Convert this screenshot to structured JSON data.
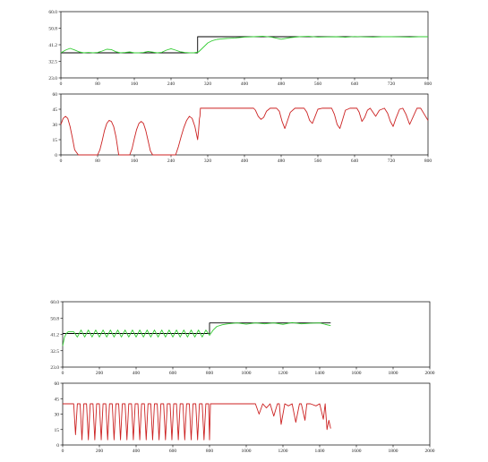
{
  "chart_data": [
    {
      "type": "line",
      "title": "",
      "xlim": [
        0,
        800
      ],
      "ylim": [
        23.0,
        60.0
      ],
      "x_ticks": [
        "0",
        "80",
        "160",
        "240",
        "320",
        "400",
        "480",
        "560",
        "640",
        "720",
        "800"
      ],
      "y_ticks": [
        "23.0",
        "32.5",
        "41.2",
        "50.8",
        "60.0"
      ],
      "colors": {
        "setpoint": "#000000",
        "response": "#33cc33"
      },
      "series": [
        {
          "color": "#000000",
          "x": [
            0,
            298,
            298,
            800
          ],
          "y": [
            37,
            37,
            46,
            46
          ]
        },
        {
          "color": "#33cc33",
          "x": [
            0,
            10,
            20,
            30,
            40,
            50,
            60,
            70,
            80,
            90,
            100,
            110,
            120,
            130,
            140,
            150,
            160,
            170,
            180,
            190,
            200,
            210,
            220,
            230,
            240,
            250,
            260,
            270,
            280,
            290,
            300,
            310,
            320,
            330,
            340,
            350,
            360,
            380,
            400,
            420,
            440,
            460,
            480,
            500,
            520,
            540,
            560,
            580,
            600,
            620,
            640,
            660,
            680,
            700,
            720,
            740,
            760,
            780,
            800
          ],
          "y": [
            37.0,
            38.5,
            39.5,
            38.6,
            37.5,
            37.0,
            37.2,
            37.0,
            37.2,
            38.0,
            39.0,
            38.8,
            37.6,
            37.0,
            37.2,
            37.5,
            37.0,
            37.0,
            37.2,
            37.8,
            37.4,
            37.0,
            37.3,
            38.5,
            39.3,
            38.5,
            37.6,
            37.2,
            37.0,
            37.0,
            37.5,
            40.0,
            42.5,
            43.8,
            44.5,
            44.8,
            45.0,
            45.3,
            45.8,
            46.0,
            46.3,
            45.7,
            44.6,
            45.5,
            46.0,
            46.2,
            45.8,
            45.9,
            46.0,
            45.7,
            46.1,
            45.9,
            45.8,
            46.0,
            46.0,
            45.9,
            45.8,
            46.0,
            46.0
          ]
        }
      ]
    },
    {
      "type": "line",
      "title": "",
      "xlim": [
        0,
        800
      ],
      "ylim": [
        0,
        60
      ],
      "x_ticks": [
        "0",
        "80",
        "160",
        "240",
        "320",
        "400",
        "480",
        "560",
        "640",
        "720",
        "800"
      ],
      "y_ticks": [
        "0",
        "15",
        "30",
        "45",
        "60"
      ],
      "colors": {
        "control": "#cc2222"
      },
      "series": [
        {
          "color": "#cc2222",
          "x": [
            0,
            5,
            10,
            15,
            20,
            25,
            30,
            38,
            44,
            80,
            85,
            90,
            95,
            100,
            105,
            110,
            115,
            120,
            126,
            150,
            155,
            160,
            165,
            170,
            175,
            180,
            185,
            190,
            195,
            200,
            206,
            250,
            256,
            262,
            268,
            274,
            280,
            286,
            292,
            298,
            300,
            302,
            303,
            304,
            308,
            420,
            424,
            430,
            436,
            442,
            448,
            456,
            470,
            476,
            482,
            488,
            494,
            500,
            510,
            530,
            536,
            542,
            548,
            554,
            560,
            570,
            590,
            596,
            602,
            608,
            614,
            620,
            630,
            645,
            650,
            656,
            662,
            668,
            674,
            680,
            686,
            694,
            705,
            712,
            718,
            724,
            730,
            738,
            745,
            752,
            760,
            768,
            776,
            784,
            792,
            800
          ],
          "y": [
            30,
            36,
            38,
            36,
            28,
            17,
            5,
            0,
            0,
            0,
            5,
            14,
            24,
            31,
            34,
            33,
            28,
            18,
            0,
            0,
            6,
            16,
            25,
            31,
            33,
            31,
            24,
            14,
            4,
            0,
            0,
            0,
            8,
            18,
            27,
            34,
            38,
            36,
            28,
            15,
            24,
            36,
            38,
            46,
            46,
            46,
            44,
            38,
            35,
            37,
            43,
            46,
            46,
            43,
            33,
            26,
            34,
            42,
            46,
            46,
            42,
            34,
            31,
            38,
            45,
            46,
            46,
            40,
            30,
            26,
            35,
            44,
            46,
            46,
            42,
            33,
            37,
            44,
            46,
            42,
            38,
            44,
            46,
            41,
            33,
            28,
            36,
            45,
            46,
            40,
            30,
            38,
            46,
            46,
            40,
            34
          ]
        }
      ]
    },
    {
      "type": "line",
      "title": "",
      "xlim": [
        0,
        2000
      ],
      "ylim": [
        23.0,
        60.0
      ],
      "x_ticks": [
        "0",
        "200",
        "400",
        "600",
        "800",
        "1000",
        "1200",
        "1400",
        "1600",
        "1800",
        "2000"
      ],
      "y_ticks": [
        "23.0",
        "32.5",
        "41.2",
        "50.8",
        "60.0"
      ],
      "colors": {
        "setpoint": "#000000",
        "response": "#33cc33"
      },
      "series": [
        {
          "color": "#000000",
          "x": [
            0,
            800,
            800,
            1460
          ],
          "y": [
            42,
            42,
            48,
            48
          ]
        },
        {
          "color": "#33cc33",
          "x": [
            0,
            10,
            20,
            30,
            60,
            80,
            100,
            120,
            140,
            160,
            180,
            200,
            220,
            240,
            260,
            280,
            300,
            320,
            340,
            360,
            380,
            400,
            420,
            440,
            460,
            480,
            500,
            520,
            540,
            560,
            580,
            600,
            620,
            640,
            660,
            680,
            700,
            720,
            740,
            760,
            780,
            800,
            820,
            840,
            870,
            900,
            950,
            1000,
            1050,
            1100,
            1150,
            1200,
            1250,
            1300,
            1350,
            1400,
            1430,
            1460
          ],
          "y": [
            35,
            40,
            42,
            43,
            43,
            40,
            44,
            40,
            44,
            40,
            44,
            40,
            44,
            40,
            44,
            40,
            44,
            40,
            44,
            40,
            44,
            40,
            44,
            40,
            44,
            40,
            44,
            40,
            44,
            40,
            44,
            40,
            44,
            40,
            44,
            40,
            44,
            40,
            44,
            40,
            44,
            41,
            44,
            46,
            47,
            47.5,
            48,
            47.3,
            48,
            47.5,
            48,
            47.2,
            48.2,
            47.5,
            47.8,
            48,
            47.2,
            46.5
          ]
        }
      ]
    },
    {
      "type": "line",
      "title": "",
      "xlim": [
        0,
        2000
      ],
      "ylim": [
        0,
        60
      ],
      "x_ticks": [
        "0",
        "200",
        "400",
        "600",
        "800",
        "1000",
        "1200",
        "1400",
        "1600",
        "1800",
        "2000"
      ],
      "y_ticks": [
        "0",
        "15",
        "30",
        "45",
        "60"
      ],
      "colors": {
        "control": "#cc2222"
      },
      "series": [
        {
          "color": "#cc2222",
          "x": [
            0,
            60,
            70,
            80,
            95,
            105,
            115,
            130,
            140,
            150,
            165,
            175,
            185,
            200,
            210,
            220,
            235,
            245,
            255,
            270,
            280,
            290,
            305,
            315,
            325,
            340,
            350,
            360,
            375,
            385,
            395,
            410,
            420,
            430,
            445,
            455,
            465,
            480,
            490,
            500,
            515,
            525,
            535,
            550,
            560,
            570,
            585,
            595,
            605,
            620,
            630,
            640,
            655,
            665,
            675,
            690,
            700,
            710,
            725,
            735,
            745,
            760,
            770,
            780,
            795,
            800,
            805,
            1050,
            1070,
            1090,
            1110,
            1130,
            1150,
            1170,
            1180,
            1190,
            1210,
            1230,
            1250,
            1270,
            1290,
            1300,
            1320,
            1330,
            1350,
            1380,
            1400,
            1420,
            1430,
            1440,
            1450,
            1460
          ],
          "y": [
            40,
            40,
            10,
            40,
            40,
            5,
            40,
            40,
            5,
            40,
            40,
            5,
            40,
            40,
            5,
            40,
            40,
            5,
            40,
            40,
            5,
            40,
            40,
            5,
            40,
            40,
            5,
            40,
            40,
            5,
            40,
            40,
            5,
            40,
            40,
            5,
            40,
            40,
            5,
            40,
            40,
            5,
            40,
            40,
            5,
            40,
            40,
            5,
            40,
            40,
            5,
            40,
            40,
            5,
            40,
            40,
            5,
            40,
            40,
            5,
            40,
            40,
            5,
            40,
            40,
            5,
            40,
            40,
            30,
            40,
            36,
            40,
            28,
            40,
            40,
            20,
            40,
            38,
            40,
            22,
            40,
            40,
            24,
            40,
            40,
            38,
            40,
            25,
            40,
            15,
            24,
            16
          ]
        }
      ]
    }
  ]
}
